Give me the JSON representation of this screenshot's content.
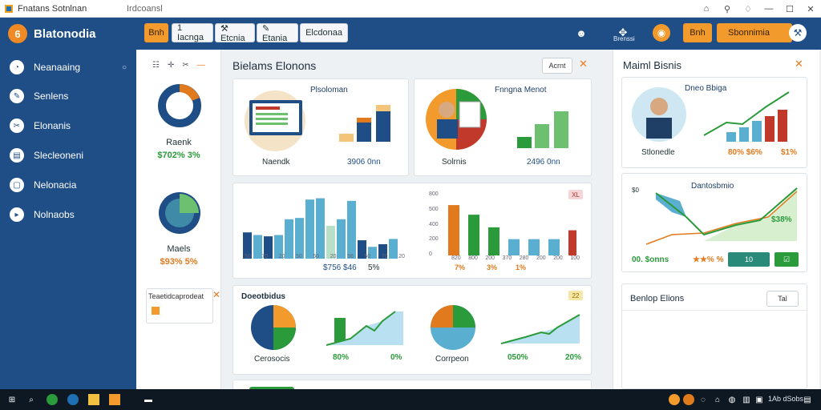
{
  "window": {
    "title": "Fnatans Sotnlnan",
    "tab_title": "Irdcoansl"
  },
  "header": {
    "brand": "Blatonodia",
    "brand_letter": "6",
    "buttons": [
      "Bnh",
      "1  Iacnga",
      "⚒ Etcnia",
      "✎ Etania",
      "Elcdonaa"
    ],
    "icon_label": "Brenssi",
    "wide_button": "Sbonnimia"
  },
  "sidebar": {
    "items": [
      {
        "label": "Neanaaing",
        "icon": "gauge-icon",
        "glyph": "◔"
      },
      {
        "label": "Senlens",
        "icon": "wrench-icon",
        "glyph": "✎"
      },
      {
        "label": "Elonanis",
        "icon": "tools-icon",
        "glyph": "✂"
      },
      {
        "label": "Slecleoneni",
        "icon": "folder-icon",
        "glyph": "▤"
      },
      {
        "label": "Nelonacia",
        "icon": "monitor-icon",
        "glyph": "▢"
      },
      {
        "label": "Nolnaobs",
        "icon": "play-icon",
        "glyph": "▸"
      }
    ]
  },
  "stats": {
    "donut1": {
      "label": "Raenk",
      "value": "$702% 3%"
    },
    "donut2": {
      "label": "Maels",
      "value": "$93% 5%"
    },
    "mini_card_title": "Teaetidcaprodeat"
  },
  "main": {
    "title": "Bielams Elonons",
    "action_label": "Acrnt",
    "card1": {
      "title": "Plsoloman",
      "label": "Naendk",
      "value": "3906 0nn"
    },
    "card2": {
      "title": "Fnngna Menot",
      "label": "Solrnis",
      "value": "2496 0nn"
    },
    "bars_left": {
      "tick_labels": [
        "50",
        "70",
        "20",
        "50",
        "50",
        "20",
        "56",
        "50",
        "70",
        "20"
      ],
      "values": [
        40,
        36,
        34,
        36,
        60,
        62,
        90,
        92,
        50,
        60,
        88,
        28,
        18,
        22,
        30
      ],
      "caption_value": "$756 $46",
      "caption_pct": "5%"
    },
    "bars_right": {
      "yticks": [
        "800",
        "500",
        "400",
        "200",
        "0"
      ],
      "xticks": [
        "820",
        "800",
        "200",
        "370",
        "280",
        "200",
        "200",
        "100"
      ],
      "percent_labels": [
        "7%",
        "3%",
        "1%"
      ],
      "values": [
        68,
        55,
        38,
        22,
        22,
        22,
        34
      ],
      "tag": "XL"
    },
    "card4": {
      "title": "Doeotbidus",
      "pie1_label": "Cerosocis",
      "pie2_label": "Corrpeon",
      "values": [
        "80%",
        "0%",
        "050%",
        "20%"
      ],
      "tag": "22"
    }
  },
  "right": {
    "title": "Maiml Bisnis",
    "card1": {
      "title": "Dneo Bbiga",
      "label": "Stlonedle",
      "values": [
        "80% $6%",
        "$1%"
      ]
    },
    "card2": {
      "title": "Dantosbmio",
      "tick_small": "$0",
      "pct": "$38%",
      "bottom_label": "00. $onns",
      "bottom_pct": "★★% %",
      "btn_label": "10"
    },
    "card3": {
      "title": "Benlop Elions",
      "action": "Tal"
    }
  },
  "taskbar": {
    "tray_time": "1Ab dSobs"
  },
  "colors": {
    "brand": "#1f4e86",
    "accent": "#f29a2b",
    "green": "#2a9a3a",
    "teal": "#5aaed0",
    "red": "#c0392b"
  }
}
